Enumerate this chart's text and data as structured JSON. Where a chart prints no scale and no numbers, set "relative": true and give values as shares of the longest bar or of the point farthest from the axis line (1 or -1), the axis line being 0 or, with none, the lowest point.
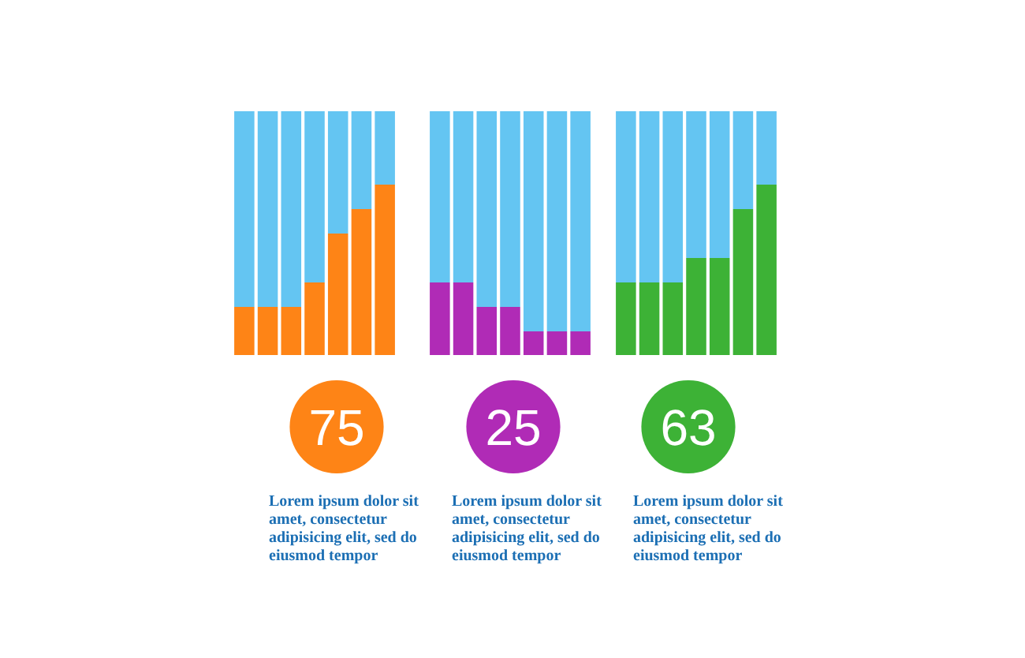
{
  "chart_data": [
    {
      "type": "bar",
      "stacked": true,
      "relative": true,
      "categories": [
        null,
        null,
        null,
        null,
        null,
        null,
        null
      ],
      "series": [
        {
          "color": "#fe8416",
          "values": [
            0.2,
            0.2,
            0.2,
            0.3,
            0.5,
            0.6,
            0.7
          ]
        },
        {
          "color": "#64c5f2",
          "values": [
            0.8,
            0.8,
            0.8,
            0.7,
            0.5,
            0.4,
            0.3
          ]
        }
      ],
      "annotations": [
        "75",
        "Lorem ipsum dolor sit amet, consectetur adipisicing elit, sed do eiusmod tempor"
      ]
    },
    {
      "type": "bar",
      "stacked": true,
      "relative": true,
      "categories": [
        null,
        null,
        null,
        null,
        null,
        null,
        null
      ],
      "series": [
        {
          "color": "#b02bb6",
          "values": [
            0.3,
            0.3,
            0.2,
            0.2,
            0.1,
            0.1,
            0.1
          ]
        },
        {
          "color": "#64c5f2",
          "values": [
            0.7,
            0.7,
            0.8,
            0.8,
            0.9,
            0.9,
            0.9
          ]
        }
      ],
      "annotations": [
        "25",
        "Lorem ipsum dolor sit amet, consectetur adipisicing elit, sed do eiusmod tempor"
      ]
    },
    {
      "type": "bar",
      "stacked": true,
      "relative": true,
      "categories": [
        null,
        null,
        null,
        null,
        null,
        null,
        null
      ],
      "series": [
        {
          "color": "#3db236",
          "values": [
            0.3,
            0.3,
            0.3,
            0.4,
            0.4,
            0.6,
            0.7
          ]
        },
        {
          "color": "#64c5f2",
          "values": [
            0.7,
            0.7,
            0.7,
            0.6,
            0.6,
            0.4,
            0.3
          ]
        }
      ],
      "annotations": [
        "63",
        "Lorem ipsum dolor sit amet, consectetur adipisicing elit, sed do eiusmod tempor"
      ]
    }
  ]
}
